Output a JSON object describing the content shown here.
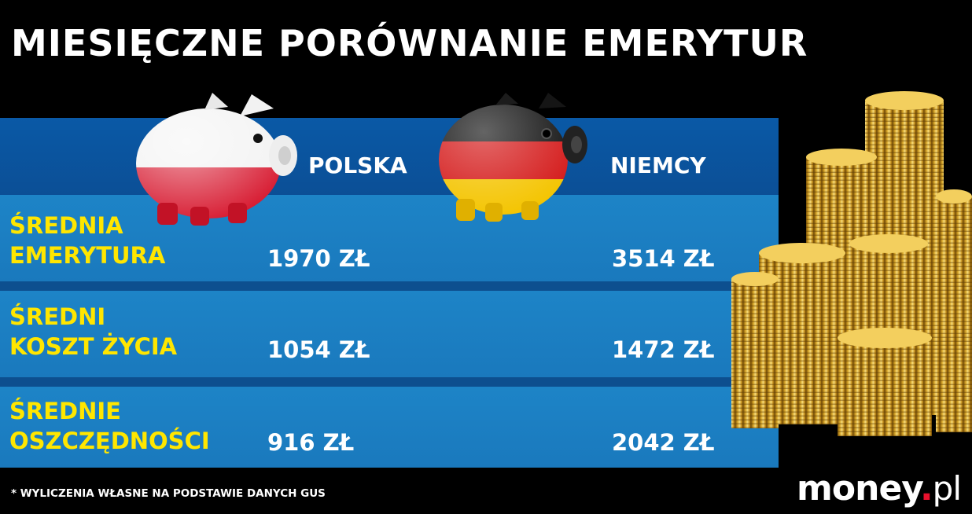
{
  "title": "MIESIĘCZNE PORÓWNANIE EMERYTUR",
  "columns": [
    "POLSKA",
    "NIEMCY"
  ],
  "rows": [
    {
      "label_line1": "ŚREDNIA",
      "label_line2": "EMERYTURA",
      "polska": "1970 ZŁ",
      "niemcy": "3514 ZŁ"
    },
    {
      "label_line1": "ŚREDNI",
      "label_line2": "KOSZT ŻYCIA",
      "polska": "1054 ZŁ",
      "niemcy": "1472 ZŁ"
    },
    {
      "label_line1": "ŚREDNIE",
      "label_line2": "OSZCZĘDNOŚCI",
      "polska": "916 ZŁ",
      "niemcy": "2042 ZŁ"
    }
  ],
  "footnote": "* WYLICZENIA WŁASNE NA PODSTAWIE DANYCH GUS",
  "logo": {
    "name": "money",
    "dot": ".",
    "tld": "pl"
  },
  "colors": {
    "label": "#ffe600",
    "header_band": "#0b4f96",
    "row_band": "#1d84c7",
    "logo_dot": "#e8112d"
  },
  "icons": [
    "piggy-bank-poland-flag-icon",
    "piggy-bank-germany-flag-icon",
    "gold-coin-stacks-image"
  ]
}
